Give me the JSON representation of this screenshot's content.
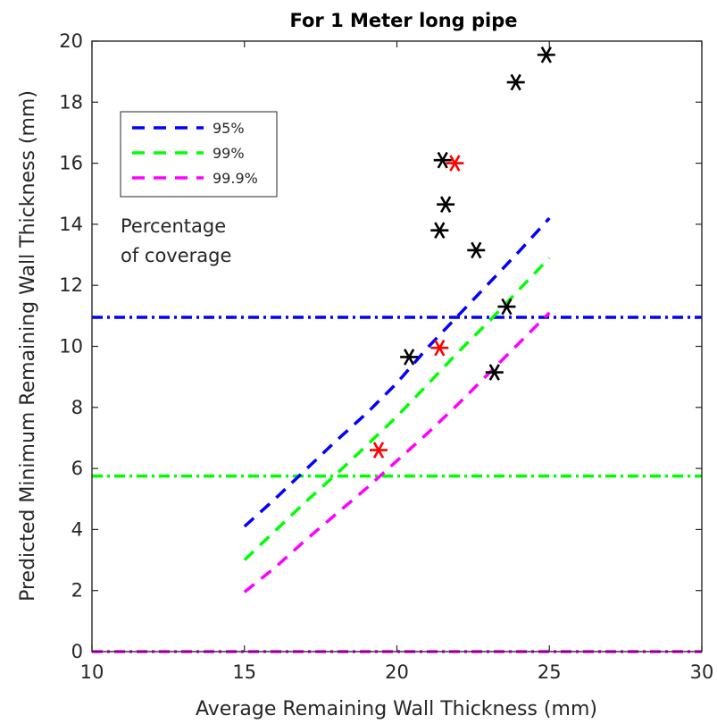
{
  "chart_data": {
    "type": "line",
    "title": "For 1 Meter long pipe",
    "xlabel": "Average Remaining Wall Thickness (mm)",
    "ylabel": "Predicted Minimum Remaining Wall Thickness (mm)",
    "xlim": [
      10,
      30
    ],
    "ylim": [
      0,
      20
    ],
    "xticks": [
      10,
      15,
      20,
      25,
      30
    ],
    "yticks": [
      0,
      2,
      4,
      6,
      8,
      10,
      12,
      14,
      16,
      18,
      20
    ],
    "grid": false,
    "legend": {
      "placement": "upper-left",
      "entries": [
        {
          "label": "95%",
          "color": "#0000ff"
        },
        {
          "label": "99%",
          "color": "#00ff00"
        },
        {
          "label": "99.9%",
          "color": "#ff00ff"
        }
      ]
    },
    "annotation": [
      "Percentage",
      "of coverage"
    ],
    "series": [
      {
        "name": "95%",
        "style": "dashed",
        "color": "#0000ff",
        "x": [
          15,
          16,
          17,
          18,
          19,
          20,
          21,
          22,
          23,
          24,
          25
        ],
        "y": [
          4.1,
          5.0,
          5.95,
          6.9,
          7.8,
          8.8,
          9.95,
          11.0,
          12.05,
          13.1,
          14.2
        ]
      },
      {
        "name": "99%",
        "style": "dashed",
        "color": "#00ff00",
        "x": [
          15,
          16,
          17,
          18,
          19,
          20,
          21,
          22,
          23,
          24,
          25
        ],
        "y": [
          3.0,
          3.95,
          4.9,
          5.8,
          6.75,
          7.7,
          8.75,
          9.8,
          10.8,
          11.85,
          12.9
        ]
      },
      {
        "name": "99.9%",
        "style": "dashed",
        "color": "#ff00ff",
        "x": [
          15,
          16,
          17,
          18,
          19,
          20,
          21,
          22,
          23,
          24,
          25
        ],
        "y": [
          1.95,
          2.75,
          3.65,
          4.5,
          5.35,
          6.25,
          7.15,
          8.1,
          9.1,
          10.1,
          11.1
        ]
      }
    ],
    "horizontal_lines": [
      {
        "y": 10.95,
        "style": "dashdot",
        "color": "#0000ff"
      },
      {
        "y": 5.75,
        "style": "dashdot",
        "color": "#00ff00"
      },
      {
        "y": 0.0,
        "style": "dashdot",
        "color": "#ff00ff"
      }
    ],
    "scatter": [
      {
        "color": "#000000",
        "marker": "asterisk",
        "points": [
          [
            24.9,
            19.55
          ],
          [
            23.9,
            18.65
          ],
          [
            21.5,
            16.1
          ],
          [
            21.6,
            14.65
          ],
          [
            21.4,
            13.8
          ],
          [
            22.6,
            13.15
          ],
          [
            23.6,
            11.3
          ],
          [
            20.4,
            9.65
          ],
          [
            23.2,
            9.15
          ]
        ]
      },
      {
        "color": "#ff0000",
        "marker": "asterisk",
        "points": [
          [
            21.9,
            16.0
          ],
          [
            21.4,
            9.95
          ],
          [
            19.4,
            6.6
          ]
        ]
      }
    ]
  }
}
